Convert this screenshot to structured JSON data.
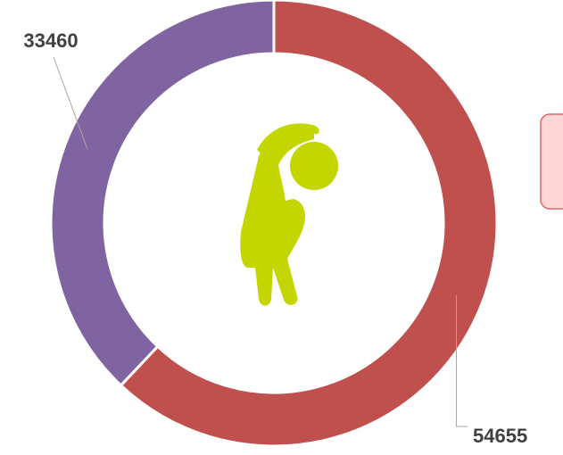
{
  "chart_data": {
    "type": "donut",
    "values": [
      54655,
      33460
    ],
    "colors": [
      "#c0504d",
      "#8064a2"
    ]
  }
}
